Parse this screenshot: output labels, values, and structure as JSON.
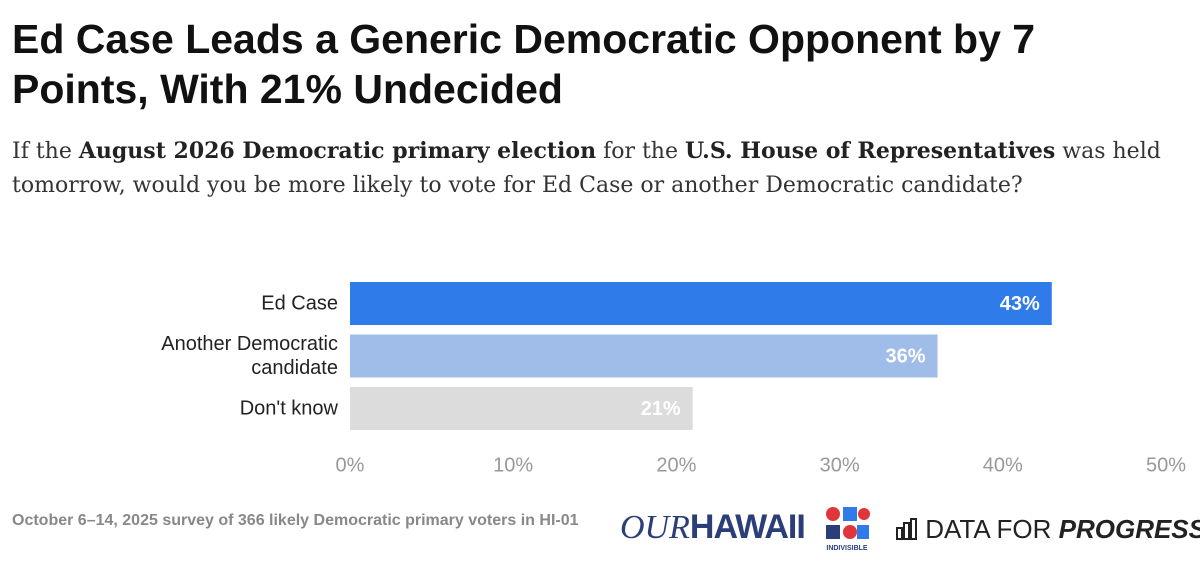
{
  "chart_data": {
    "type": "hbar",
    "title": "Ed Case Leads a Generic Democratic Opponent by 7 Points, With 21% Undecided",
    "subtitle_parts": [
      {
        "text": "If the ",
        "bold": false
      },
      {
        "text": "August 2026 Democratic primary election",
        "bold": true
      },
      {
        "text": " for the ",
        "bold": false
      },
      {
        "text": "U.S. House of Representatives",
        "bold": true
      },
      {
        "text": " was held tomorrow, would you be more likely to vote for Ed Case or another Democratic candidate?",
        "bold": false
      }
    ],
    "categories": [
      "Ed Case",
      "Another Democratic candidate",
      "Don't know"
    ],
    "values": [
      43,
      36,
      21
    ],
    "value_labels": [
      "43%",
      "36%",
      "21%"
    ],
    "colors": [
      "#2f7bea",
      "#a0bce8",
      "#dcdcdc"
    ],
    "xlim": [
      0,
      50
    ],
    "xticks": [
      {
        "value": 0,
        "label": "0%"
      },
      {
        "value": 10,
        "label": "10%"
      },
      {
        "value": 20,
        "label": "20%"
      },
      {
        "value": 30,
        "label": "30%"
      },
      {
        "value": 40,
        "label": "40%"
      },
      {
        "value": 50,
        "label": "50%"
      }
    ],
    "grid": false,
    "note": "October 6–14, 2025 survey of 366 likely Democratic primary voters in HI-01",
    "logos": [
      "OUR",
      "HAWAII",
      "INDIVISIBLE",
      "DATA FOR",
      "PROGRESS"
    ]
  }
}
